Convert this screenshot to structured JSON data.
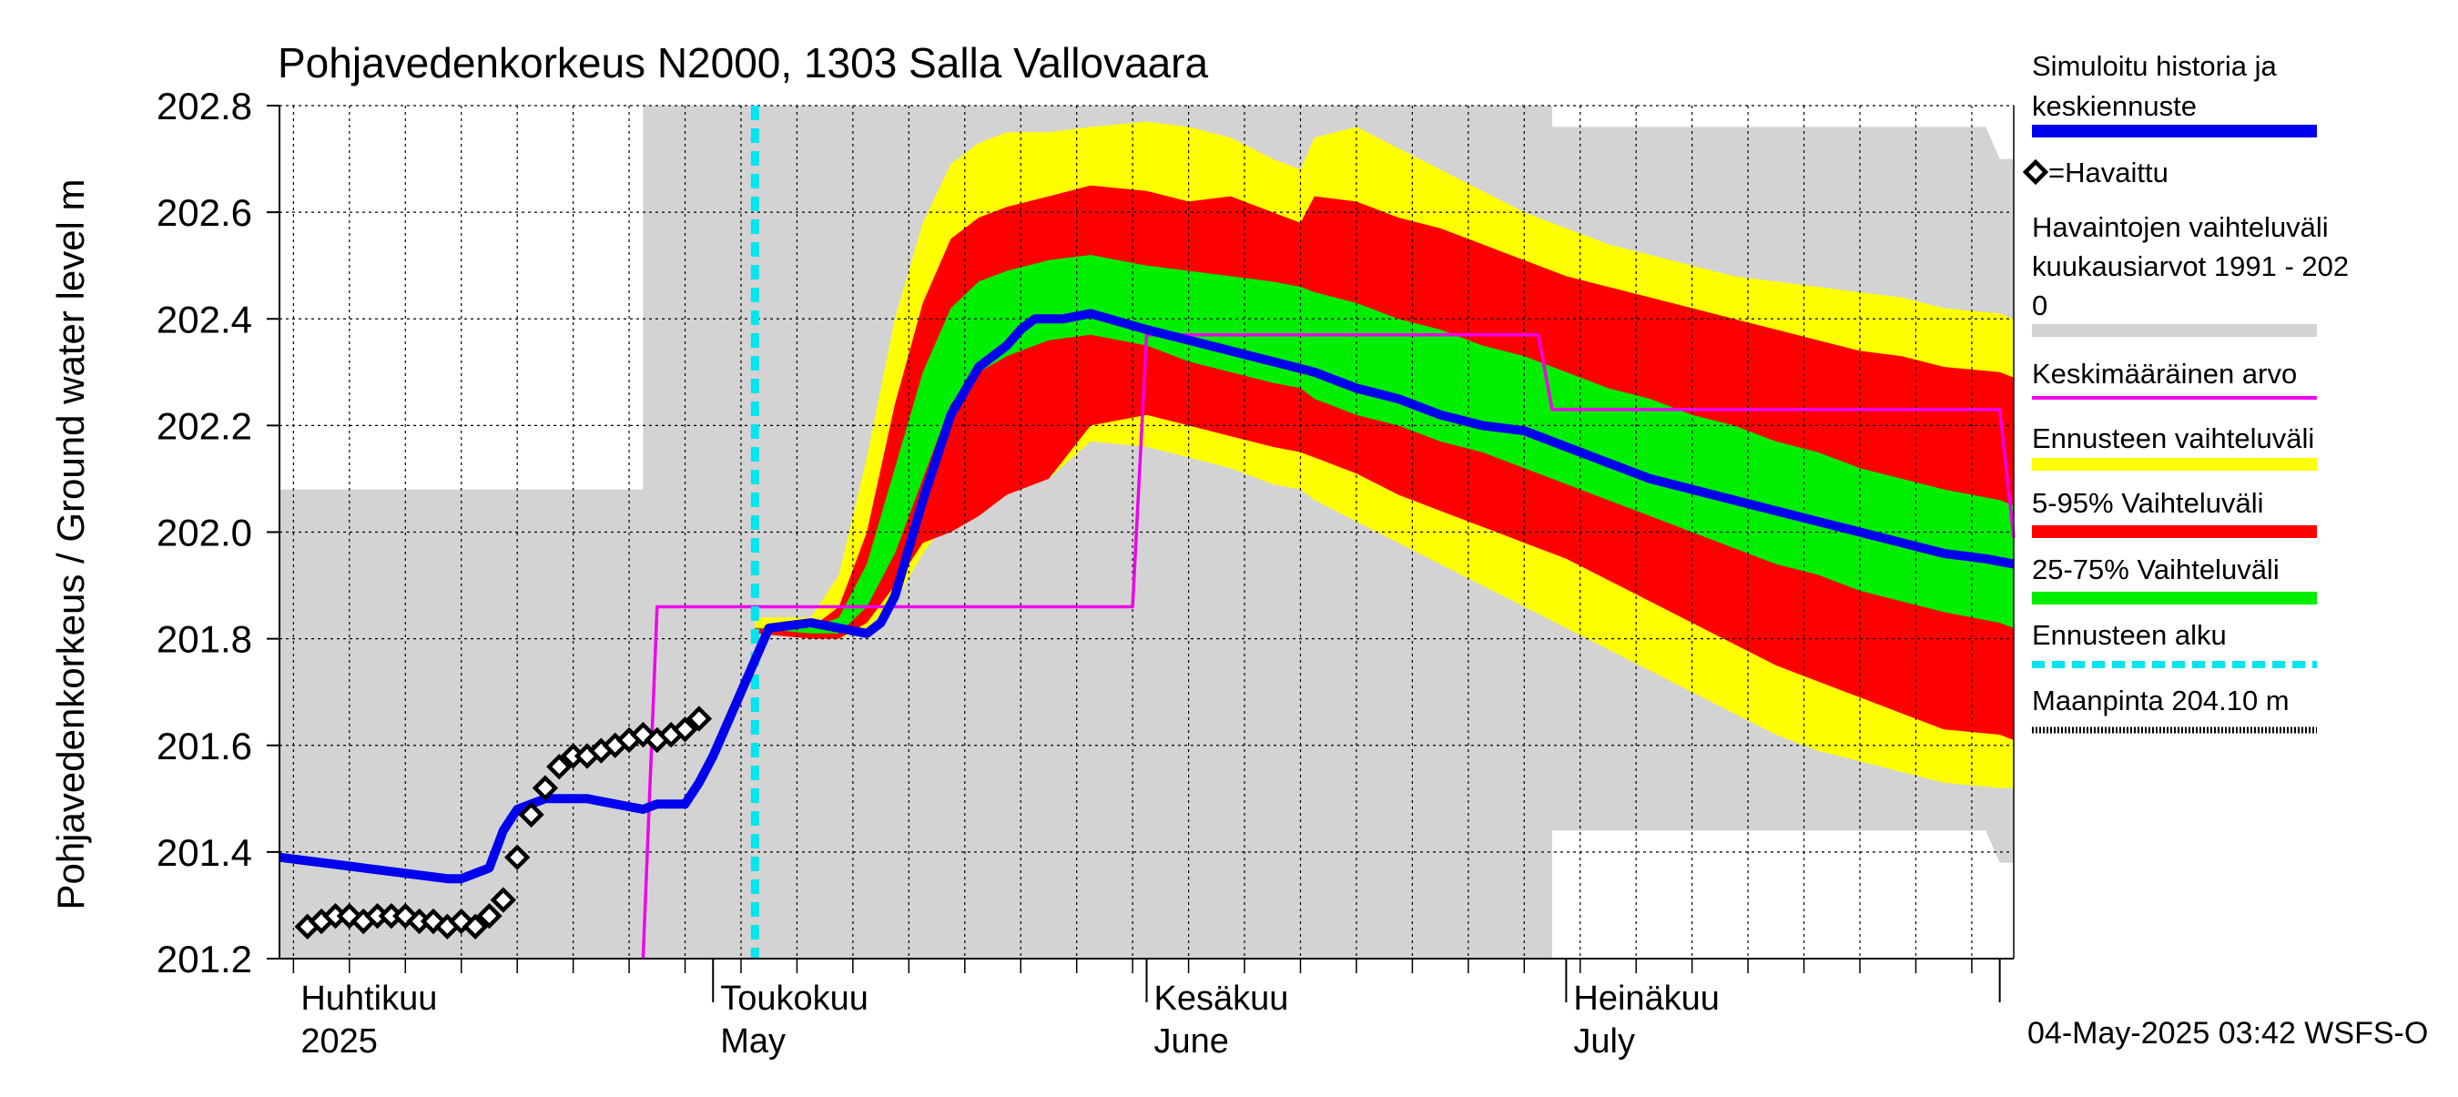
{
  "chart_data": {
    "type": "line",
    "title": "Pohjavedenkorkeus N2000, 1303 Salla Vallovaara",
    "ylabel": "Pohjavedenkorkeus / Ground water level   m",
    "ylim": [
      201.2,
      202.8
    ],
    "yticks": [
      "201.2",
      "201.4",
      "201.6",
      "201.8",
      "202.0",
      "202.2",
      "202.4",
      "202.6",
      "202.8"
    ],
    "xlim": [
      "2025-03-31",
      "2025-08-02"
    ],
    "month_labels": [
      {
        "date": "2025-04-01",
        "fi": "Huhtikuu",
        "en": "2025"
      },
      {
        "date": "2025-05-01",
        "fi": "Toukokuu",
        "en": "May"
      },
      {
        "date": "2025-06-01",
        "fi": "Kesäkuu",
        "en": "June"
      },
      {
        "date": "2025-07-01",
        "fi": "Heinäkuu",
        "en": "July"
      }
    ],
    "forecast_start": "2025-05-04",
    "legend": [
      {
        "label": "Simuloitu historia ja keskiennuste",
        "color": "#0000ee"
      },
      {
        "label": "=Havaittu",
        "color": "#000000"
      },
      {
        "label": "Havaintojen vaihteluväli kuukausiarvot 1991 - 2020",
        "color": "#d3d3d3"
      },
      {
        "label": "Keskimääräinen arvo",
        "color": "#ee00ee"
      },
      {
        "label": "Ennusteen vaihteluväli",
        "color": "#ffff00"
      },
      {
        "label": "5-95% Vaihteluväli",
        "color": "#ff0000"
      },
      {
        "label": "25-75% Vaihteluväli",
        "color": "#00ee00"
      },
      {
        "label": "Ennusteen alku",
        "color": "#00e5ee"
      },
      {
        "label": "Maanpinta 204.10 m",
        "color": "#000000"
      }
    ],
    "legend_lines": [
      "Simuloitu historia ja",
      "keskiennuste",
      "=Havaittu",
      "Havaintojen vaihteluväli",
      " kuukausiarvot 1991 - 202",
      "0",
      "Keskimääräinen arvo",
      "Ennusteen vaihteluväli",
      "5-95% Vaihteluväli",
      "25-75% Vaihteluväli",
      "Ennusteen alku",
      "Maanpinta 204.10 m"
    ],
    "history_range": {
      "x": [
        "2025-03-31",
        "2025-04-26",
        "2025-04-26",
        "2025-04-30",
        "2025-04-30",
        "2025-05-31",
        "2025-05-31",
        "2025-06-30",
        "2025-06-30",
        "2025-07-31",
        "2025-08-01",
        "2025-08-02"
      ],
      "upper": [
        202.08,
        202.08,
        202.8,
        202.8,
        202.8,
        202.8,
        202.8,
        202.8,
        202.76,
        202.76,
        202.7,
        202.7
      ],
      "lower": [
        201.2,
        201.2,
        201.2,
        201.2,
        201.2,
        201.2,
        201.2,
        201.2,
        201.44,
        201.44,
        201.38,
        201.38
      ]
    },
    "mean_value": {
      "x": [
        "2025-04-26",
        "2025-04-27",
        "2025-05-31",
        "2025-06-01",
        "2025-06-29",
        "2025-06-30",
        "2025-08-01",
        "2025-08-02"
      ],
      "y": [
        201.2,
        201.86,
        201.86,
        202.37,
        202.37,
        202.23,
        202.23,
        201.99
      ]
    },
    "series": [
      {
        "name": "Simuloitu historia ja keskiennuste",
        "x": [
          "2025-03-31",
          "2025-04-06",
          "2025-04-12",
          "2025-04-13",
          "2025-04-15",
          "2025-04-16",
          "2025-04-17",
          "2025-04-19",
          "2025-04-22",
          "2025-04-24",
          "2025-04-26",
          "2025-04-27",
          "2025-04-28",
          "2025-04-29",
          "2025-04-30",
          "2025-05-01",
          "2025-05-05",
          "2025-05-08",
          "2025-05-10",
          "2025-05-12",
          "2025-05-13",
          "2025-05-14",
          "2025-05-15",
          "2025-05-16",
          "2025-05-17",
          "2025-05-18",
          "2025-05-20",
          "2025-05-22",
          "2025-05-23",
          "2025-05-24",
          "2025-05-26",
          "2025-05-28",
          "2025-06-01",
          "2025-06-04",
          "2025-06-07",
          "2025-06-10",
          "2025-06-13",
          "2025-06-16",
          "2025-06-19",
          "2025-06-22",
          "2025-06-25",
          "2025-06-28",
          "2025-07-01",
          "2025-07-04",
          "2025-07-07",
          "2025-07-10",
          "2025-07-13",
          "2025-07-16",
          "2025-07-19",
          "2025-07-22",
          "2025-07-25",
          "2025-07-28",
          "2025-07-31",
          "2025-08-02"
        ],
        "y": [
          201.39,
          201.37,
          201.35,
          201.35,
          201.37,
          201.44,
          201.48,
          201.5,
          201.5,
          201.49,
          201.48,
          201.49,
          201.49,
          201.49,
          201.53,
          201.58,
          201.82,
          201.83,
          201.82,
          201.81,
          201.83,
          201.88,
          201.97,
          202.06,
          202.14,
          202.22,
          202.31,
          202.35,
          202.38,
          202.4,
          202.4,
          202.41,
          202.38,
          202.36,
          202.34,
          202.32,
          202.3,
          202.27,
          202.25,
          202.22,
          202.2,
          202.19,
          202.16,
          202.13,
          202.1,
          202.08,
          202.06,
          202.04,
          202.02,
          202.0,
          201.98,
          201.96,
          201.95,
          201.94
        ]
      },
      {
        "name": "=Havaittu",
        "x": [
          "2025-04-02",
          "2025-04-03",
          "2025-04-04",
          "2025-04-05",
          "2025-04-06",
          "2025-04-07",
          "2025-04-08",
          "2025-04-09",
          "2025-04-10",
          "2025-04-11",
          "2025-04-12",
          "2025-04-13",
          "2025-04-14",
          "2025-04-15",
          "2025-04-16",
          "2025-04-17",
          "2025-04-18",
          "2025-04-19",
          "2025-04-20",
          "2025-04-21",
          "2025-04-22",
          "2025-04-23",
          "2025-04-24",
          "2025-04-25",
          "2025-04-26",
          "2025-04-27",
          "2025-04-28",
          "2025-04-29",
          "2025-04-30"
        ],
        "y": [
          201.26,
          201.27,
          201.28,
          201.28,
          201.27,
          201.28,
          201.28,
          201.28,
          201.27,
          201.27,
          201.26,
          201.27,
          201.26,
          201.28,
          201.31,
          201.39,
          201.47,
          201.52,
          201.56,
          201.58,
          201.58,
          201.59,
          201.6,
          201.61,
          201.62,
          201.61,
          201.62,
          201.63,
          201.65
        ]
      }
    ],
    "forecast_bands": {
      "x": [
        "2025-05-04",
        "2025-05-08",
        "2025-05-10",
        "2025-05-12",
        "2025-05-14",
        "2025-05-16",
        "2025-05-18",
        "2025-05-20",
        "2025-05-22",
        "2025-05-25",
        "2025-05-28",
        "2025-06-01",
        "2025-06-04",
        "2025-06-07",
        "2025-06-10",
        "2025-06-12",
        "2025-06-13",
        "2025-06-16",
        "2025-06-19",
        "2025-06-22",
        "2025-06-25",
        "2025-06-28",
        "2025-07-01",
        "2025-07-04",
        "2025-07-07",
        "2025-07-10",
        "2025-07-13",
        "2025-07-16",
        "2025-07-19",
        "2025-07-22",
        "2025-07-25",
        "2025-07-28",
        "2025-08-01",
        "2025-08-02"
      ],
      "yellow_upper": [
        201.84,
        201.84,
        201.92,
        202.14,
        202.4,
        202.58,
        202.69,
        202.73,
        202.75,
        202.75,
        202.76,
        202.77,
        202.76,
        202.74,
        202.7,
        202.68,
        202.74,
        202.76,
        202.72,
        202.68,
        202.64,
        202.6,
        202.57,
        202.54,
        202.52,
        202.5,
        202.48,
        202.47,
        202.46,
        202.45,
        202.44,
        202.42,
        202.41,
        202.4
      ],
      "red_upper": [
        201.82,
        201.82,
        201.86,
        202.0,
        202.24,
        202.43,
        202.55,
        202.59,
        202.61,
        202.63,
        202.65,
        202.64,
        202.62,
        202.63,
        202.6,
        202.58,
        202.63,
        202.62,
        202.59,
        202.57,
        202.54,
        202.51,
        202.48,
        202.46,
        202.44,
        202.42,
        202.4,
        202.38,
        202.36,
        202.34,
        202.33,
        202.31,
        202.3,
        202.29
      ],
      "green_upper": [
        201.82,
        201.82,
        201.84,
        201.94,
        202.12,
        202.3,
        202.42,
        202.47,
        202.49,
        202.51,
        202.52,
        202.5,
        202.49,
        202.48,
        202.47,
        202.46,
        202.45,
        202.43,
        202.4,
        202.38,
        202.35,
        202.33,
        202.3,
        202.27,
        202.25,
        202.22,
        202.2,
        202.17,
        202.15,
        202.12,
        202.1,
        202.08,
        202.06,
        202.05
      ],
      "green_lower": [
        201.82,
        201.81,
        201.81,
        201.86,
        201.96,
        202.1,
        202.24,
        202.3,
        202.33,
        202.36,
        202.37,
        202.35,
        202.32,
        202.3,
        202.28,
        202.27,
        202.25,
        202.22,
        202.2,
        202.17,
        202.15,
        202.12,
        202.09,
        202.06,
        202.03,
        202.0,
        201.97,
        201.94,
        201.92,
        201.89,
        201.87,
        201.85,
        201.83,
        201.82
      ],
      "red_lower": [
        201.81,
        201.8,
        201.8,
        201.83,
        201.9,
        201.98,
        202.0,
        202.03,
        202.07,
        202.1,
        202.2,
        202.22,
        202.2,
        202.18,
        202.16,
        202.15,
        202.14,
        202.11,
        202.07,
        202.04,
        202.01,
        201.98,
        201.95,
        201.91,
        201.87,
        201.83,
        201.79,
        201.75,
        201.72,
        201.69,
        201.66,
        201.63,
        201.62,
        201.61
      ],
      "yellow_lower": [
        201.81,
        201.8,
        201.8,
        201.82,
        201.87,
        201.96,
        202.03,
        202.06,
        202.08,
        202.1,
        202.17,
        202.16,
        202.14,
        202.12,
        202.09,
        202.08,
        202.06,
        202.02,
        201.98,
        201.94,
        201.9,
        201.86,
        201.82,
        201.78,
        201.74,
        201.7,
        201.66,
        201.62,
        201.59,
        201.57,
        201.55,
        201.53,
        201.52,
        201.52
      ]
    },
    "grid": true,
    "legend_position": "right"
  },
  "footer": {
    "timestamp": "04-May-2025 03:42 WSFS-O"
  }
}
